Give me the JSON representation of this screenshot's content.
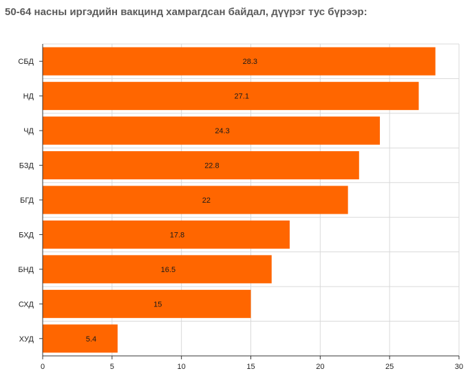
{
  "chart_data": {
    "type": "bar",
    "orientation": "horizontal",
    "title": "50-64 насны иргэдийн вакцинд хамрагдсан байдал, дүүрэг тус бүрээр:",
    "categories": [
      "СБД",
      "НД",
      "ЧД",
      "БЗД",
      "БГД",
      "БХД",
      "БНД",
      "СХД",
      "ХУД"
    ],
    "values": [
      28.3,
      27.1,
      24.3,
      22.8,
      22,
      17.8,
      16.5,
      15,
      5.4
    ],
    "value_labels": [
      "28.3",
      "27.1",
      "24.3",
      "22.8",
      "22",
      "17.8",
      "16.5",
      "15",
      "5.4"
    ],
    "xlim": [
      0,
      30
    ],
    "xticks": [
      "0",
      "5",
      "10",
      "15",
      "20",
      "25",
      "30"
    ],
    "xtick_values": [
      0,
      5,
      10,
      15,
      20,
      25,
      30
    ],
    "grid": true,
    "legend": "none",
    "bar_color": "#ff6600",
    "grid_color": "#d9d9d9",
    "axis_color": "#333333"
  }
}
